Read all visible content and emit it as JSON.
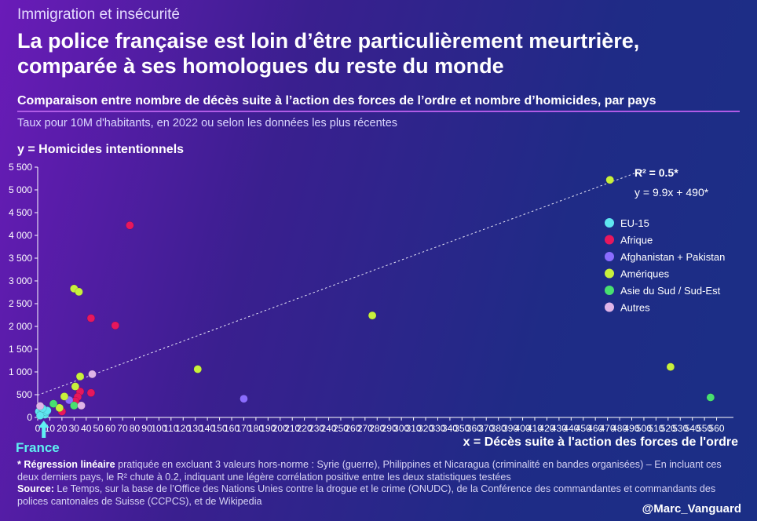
{
  "header": {
    "kicker": "Immigration et insécurité",
    "title_line1": "La police française est loin d’être particulièrement meurtrière,",
    "title_line2": "comparée à ses homologues du reste du monde",
    "subtitle": "Comparaison entre nombre de décès suite à l’action des forces de l’ordre et nombre d’homicides, par pays",
    "note": "Taux pour 10M d'habitants, en 2022 ou selon les données les plus récentes"
  },
  "chart_data": {
    "type": "scatter",
    "ylabel": "y = Homicides intentionnels",
    "xlabel": "x = Décès suite à l'action des forces de l'ordre",
    "xlim": [
      0,
      570
    ],
    "ylim": [
      0,
      5500
    ],
    "x_ticks": [
      0,
      10,
      20,
      30,
      40,
      50,
      60,
      70,
      80,
      90,
      100,
      110,
      120,
      130,
      140,
      150,
      160,
      170,
      180,
      190,
      200,
      210,
      220,
      230,
      240,
      250,
      260,
      270,
      280,
      290,
      300,
      310,
      320,
      330,
      340,
      350,
      360,
      370,
      380,
      390,
      400,
      410,
      420,
      430,
      440,
      450,
      460,
      470,
      480,
      490,
      500,
      510,
      520,
      530,
      540,
      550,
      560
    ],
    "y_ticks": [
      0,
      500,
      1000,
      1500,
      2000,
      2500,
      3000,
      3500,
      4000,
      4500,
      5000,
      5500
    ],
    "y_tick_labels": [
      "0",
      "500",
      "1 000",
      "1 500",
      "2 000",
      "2 500",
      "3 000",
      "3 500",
      "4 000",
      "4 500",
      "5 000",
      "5 500"
    ],
    "grid": false,
    "legend_position": "right",
    "regression": {
      "slope": 9.9,
      "intercept": 490,
      "r2_label": "R² = 0.5*",
      "equation_label": "y = 9.9x + 490*"
    },
    "annotation": "France",
    "annotation_x": 5,
    "series": [
      {
        "name": "EU-15",
        "color": "#5fe6f0",
        "points": [
          [
            1,
            130
          ],
          [
            3,
            90
          ],
          [
            5,
            110
          ],
          [
            6,
            60
          ],
          [
            7,
            120
          ],
          [
            8,
            150
          ],
          [
            4,
            200
          ],
          [
            2,
            40
          ]
        ]
      },
      {
        "name": "Afrique",
        "color": "#e8175d",
        "points": [
          [
            76,
            4220
          ],
          [
            44,
            2180
          ],
          [
            64,
            2020
          ],
          [
            35,
            570
          ],
          [
            44,
            540
          ],
          [
            33,
            450
          ],
          [
            31,
            360
          ],
          [
            20,
            130
          ]
        ]
      },
      {
        "name": "Afghanistan + Pakistan",
        "color": "#8b6cff",
        "points": [
          [
            170,
            410
          ],
          [
            26,
            380
          ]
        ]
      },
      {
        "name": "Amériques",
        "color": "#c8f03c",
        "points": [
          [
            472,
            5220
          ],
          [
            30,
            2830
          ],
          [
            34,
            2760
          ],
          [
            276,
            2240
          ],
          [
            132,
            1060
          ],
          [
            522,
            1110
          ],
          [
            35,
            900
          ],
          [
            31,
            680
          ],
          [
            22,
            460
          ],
          [
            18,
            210
          ]
        ]
      },
      {
        "name": "Asie du Sud / Sud-Est",
        "color": "#48e070",
        "points": [
          [
            555,
            440
          ],
          [
            30,
            260
          ],
          [
            13,
            300
          ]
        ]
      },
      {
        "name": "Autres",
        "color": "#e0b4e8",
        "points": [
          [
            45,
            950
          ],
          [
            36,
            260
          ],
          [
            2,
            250
          ]
        ]
      }
    ]
  },
  "footer": {
    "reg_label": "* Régression linéaire",
    "reg_text": " pratiquée en excluant 3 valeurs hors-norme : Syrie (guerre), Philippines et Nicaragua (criminalité en bandes organisées) – En incluant ces deux derniers pays, le R² chute à 0.2, indiquant une légère corrélation positive entre les deux statistiques testées",
    "source_label": "Source:",
    "source_text": " Le Temps, sur la base de l’Office des Nations Unies contre la drogue et le crime (ONUDC), de la Conférence des commandantes et commandants des polices cantonales de Suisse (CCPCS), et de Wikipedia",
    "handle": "@Marc_Vanguard"
  }
}
